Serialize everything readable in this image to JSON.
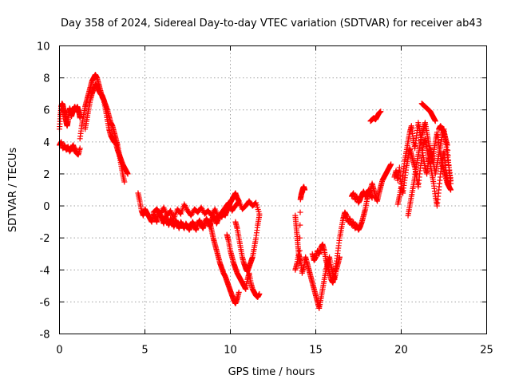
{
  "chart_data": {
    "type": "scatter",
    "title": "Day 358 of 2024, Sidereal Day-to-day VTEC variation (SDTVAR) for receiver ab43",
    "xlabel": "GPS time / hours",
    "ylabel": "SDTVAR / TECUs",
    "xlim": [
      0,
      25
    ],
    "ylim": [
      -8,
      10
    ],
    "xticks": [
      0,
      5,
      10,
      15,
      20,
      25
    ],
    "yticks": [
      -8,
      -6,
      -4,
      -2,
      0,
      2,
      4,
      6,
      8,
      10
    ],
    "grid": true,
    "marker": "+",
    "color": "#ff0000",
    "series": [
      {
        "name": "",
        "segments": [
          {
            "x": [
              0.0,
              0.05,
              0.1,
              0.15,
              0.2,
              0.25,
              0.3,
              0.35,
              0.4,
              0.45,
              0.5,
              0.55,
              0.6,
              0.65,
              0.7,
              0.75,
              0.8,
              0.85,
              0.9,
              0.95,
              1.0,
              1.05,
              1.1,
              1.15,
              1.2
            ],
            "y": [
              4.8,
              5.6,
              6.2,
              6.4,
              6.3,
              6.0,
              5.8,
              5.5,
              5.2,
              5.0,
              5.3,
              5.8,
              6.1,
              5.9,
              5.6,
              5.8,
              6.0,
              6.1,
              6.2,
              6.0,
              6.1,
              6.2,
              6.0,
              5.8,
              5.5
            ]
          },
          {
            "x": [
              0.0,
              0.1,
              0.2,
              0.3,
              0.4,
              0.5,
              0.6,
              0.7,
              0.8,
              0.9,
              1.0,
              1.1,
              1.2
            ],
            "y": [
              3.8,
              4.0,
              3.6,
              3.8,
              3.5,
              3.7,
              3.4,
              3.6,
              3.8,
              3.5,
              3.3,
              3.2,
              3.6
            ]
          },
          {
            "x": [
              1.2,
              1.3,
              1.4,
              1.5,
              1.6,
              1.7,
              1.8,
              1.9,
              2.0,
              2.1,
              2.2,
              2.3,
              2.4,
              2.5,
              2.6,
              2.7,
              2.8,
              2.9,
              3.0,
              3.1,
              3.2,
              3.3,
              3.4,
              3.5,
              3.6,
              3.7,
              3.8
            ],
            "y": [
              4.2,
              5.0,
              5.6,
              6.2,
              6.6,
              7.0,
              7.4,
              7.8,
              8.0,
              8.2,
              8.0,
              7.6,
              7.2,
              6.8,
              6.6,
              6.3,
              6.0,
              5.6,
              5.2,
              5.0,
              4.6,
              4.2,
              3.8,
              3.2,
              2.6,
              2.0,
              1.5
            ]
          },
          {
            "x": [
              1.5,
              1.6,
              1.7,
              1.8,
              1.9,
              2.0,
              2.1,
              2.2,
              2.3,
              2.4,
              2.5,
              2.6,
              2.7,
              2.8,
              2.9,
              3.0,
              3.1,
              3.2,
              3.3,
              3.4,
              3.5,
              3.6,
              3.7,
              3.8,
              3.9,
              4.0
            ],
            "y": [
              4.8,
              5.4,
              6.0,
              6.6,
              7.0,
              7.3,
              7.6,
              7.5,
              7.2,
              7.0,
              6.9,
              6.6,
              6.0,
              5.4,
              4.8,
              4.4,
              4.2,
              4.0,
              3.9,
              3.5,
              3.2,
              2.9,
              2.6,
              2.4,
              2.2,
              2.0
            ]
          },
          {
            "x": [
              4.6,
              4.7,
              4.8,
              4.9,
              5.0,
              5.1,
              5.2,
              5.3,
              5.4,
              5.5,
              5.6,
              5.7,
              5.8,
              5.9,
              6.0,
              6.1,
              6.2,
              6.3,
              6.4,
              6.5,
              6.6,
              6.7,
              6.8,
              6.9,
              7.0,
              7.1,
              7.2,
              7.3,
              7.4,
              7.5,
              7.6,
              7.7,
              7.8,
              7.9,
              8.0,
              8.1,
              8.2,
              8.3,
              8.4,
              8.5,
              8.6,
              8.7,
              8.8,
              8.9,
              9.0,
              9.1,
              9.2,
              9.3,
              9.4,
              9.5,
              9.6,
              9.7,
              9.8,
              9.9,
              10.0,
              10.1,
              10.2,
              10.3,
              10.4,
              10.5
            ],
            "y": [
              0.8,
              0.3,
              -0.3,
              -0.6,
              -0.2,
              -0.4,
              -0.6,
              -0.8,
              -1.0,
              -0.5,
              -0.7,
              -1.0,
              -0.4,
              -0.6,
              -0.8,
              -1.1,
              -0.6,
              -0.9,
              -1.2,
              -0.8,
              -1.0,
              -1.3,
              -0.9,
              -1.1,
              -1.4,
              -1.0,
              -1.2,
              -1.4,
              -1.1,
              -1.3,
              -1.5,
              -1.2,
              -1.0,
              -1.3,
              -1.5,
              -1.1,
              -0.9,
              -1.2,
              -1.4,
              -1.1,
              -0.8,
              -1.0,
              -1.3,
              -0.9,
              -0.6,
              -0.8,
              -1.1,
              -0.8,
              -0.5,
              -0.7,
              -0.4,
              -0.6,
              -0.3,
              -0.1,
              0.2,
              0.4,
              0.6,
              0.8,
              0.5,
              0.3
            ]
          },
          {
            "x": [
              5.5,
              5.7,
              5.9,
              6.1,
              6.3,
              6.5,
              6.7,
              6.9,
              7.1,
              7.3,
              7.5,
              7.7,
              7.9,
              8.1,
              8.3,
              8.5,
              8.7,
              8.9,
              9.1,
              9.3,
              9.5,
              9.7,
              9.9,
              10.1,
              10.3,
              10.5,
              10.7,
              10.9,
              11.1,
              11.3,
              11.5,
              11.7
            ],
            "y": [
              -0.4,
              -0.2,
              -0.5,
              -0.1,
              -0.6,
              -0.3,
              -0.8,
              -0.2,
              -0.5,
              0.1,
              -0.3,
              -0.6,
              -0.2,
              -0.4,
              -0.1,
              -0.5,
              -0.3,
              -0.6,
              -0.2,
              -0.7,
              -0.4,
              -0.1,
              0.2,
              -0.3,
              0.0,
              0.3,
              -0.2,
              0.0,
              0.3,
              0.0,
              0.2,
              -0.5
            ]
          },
          {
            "x": [
              8.8,
              8.9,
              9.0,
              9.1,
              9.2,
              9.3,
              9.4,
              9.5,
              9.6,
              9.7,
              9.8,
              9.9,
              10.0,
              10.1,
              10.2,
              10.3,
              10.4,
              10.5
            ],
            "y": [
              -1.0,
              -1.5,
              -2.0,
              -2.4,
              -2.8,
              -3.2,
              -3.6,
              -3.9,
              -4.2,
              -4.4,
              -4.7,
              -5.0,
              -5.3,
              -5.6,
              -5.9,
              -6.1,
              -5.8,
              -5.4
            ]
          },
          {
            "x": [
              9.8,
              9.9,
              10.0,
              10.1,
              10.2,
              10.3,
              10.4,
              10.5,
              10.6,
              10.7,
              10.8,
              10.9,
              11.0,
              11.1,
              11.2,
              11.3,
              11.4,
              11.5,
              11.6,
              11.7
            ],
            "y": [
              -1.8,
              -2.2,
              -2.8,
              -3.2,
              -3.6,
              -3.9,
              -4.2,
              -4.4,
              -4.6,
              -4.8,
              -5.0,
              -5.2,
              -4.6,
              -4.2,
              -4.8,
              -5.2,
              -5.4,
              -5.6,
              -5.7,
              -5.5
            ]
          },
          {
            "x": [
              10.3,
              10.4,
              10.5,
              10.6,
              10.7,
              10.8,
              10.9,
              11.0,
              11.1,
              11.2,
              11.3,
              11.4,
              11.5,
              11.6,
              11.7
            ],
            "y": [
              -1.0,
              -1.4,
              -2.0,
              -2.6,
              -3.2,
              -3.6,
              -3.9,
              -4.1,
              -3.8,
              -3.5,
              -3.2,
              -2.6,
              -2.0,
              -1.2,
              -0.6
            ]
          },
          {
            "x": [
              13.8,
              13.85,
              13.9,
              13.95,
              14.0,
              14.05,
              14.1,
              14.15,
              14.2,
              14.25,
              14.3,
              14.35
            ],
            "y": [
              -0.6,
              -1.2,
              -1.8,
              -2.4,
              -3.0,
              -3.6,
              0.4,
              0.7,
              0.9,
              1.1,
              1.2,
              1.0
            ]
          },
          {
            "x": [
              13.8,
              13.9,
              14.0,
              14.1,
              14.2,
              14.3,
              14.4,
              14.5,
              14.6,
              14.7,
              14.8,
              14.9,
              15.0,
              15.1,
              15.2,
              15.3,
              15.4,
              15.5,
              15.6,
              15.7,
              15.8,
              15.9,
              16.0,
              16.1,
              16.2,
              16.3,
              16.4
            ],
            "y": [
              -4.0,
              -3.6,
              -3.0,
              -3.4,
              -4.2,
              -3.8,
              -3.2,
              -3.6,
              -4.0,
              -4.4,
              -4.8,
              -5.2,
              -5.6,
              -6.0,
              -6.4,
              -5.8,
              -5.2,
              -4.6,
              -4.0,
              -3.6,
              -3.2,
              -3.8,
              -4.2,
              -4.6,
              -4.0,
              -3.6,
              -3.2
            ]
          },
          {
            "x": [
              14.8,
              14.9,
              15.0,
              15.1,
              15.2,
              15.3,
              15.4,
              15.5,
              15.6,
              15.7,
              15.8,
              15.9,
              16.0,
              16.1,
              16.2,
              16.3,
              16.4,
              16.5,
              16.6,
              16.7,
              16.8,
              16.9,
              17.0,
              17.1,
              17.2,
              17.3,
              17.4,
              17.5,
              17.6,
              17.7,
              17.8,
              17.9,
              18.0,
              18.1,
              18.2,
              18.3,
              18.4,
              18.5,
              18.6,
              18.7,
              18.8,
              18.9,
              19.0,
              19.1,
              19.2,
              19.3,
              19.4
            ],
            "y": [
              -3.0,
              -3.4,
              -3.2,
              -2.8,
              -3.0,
              -2.6,
              -2.4,
              -2.8,
              -3.4,
              -3.8,
              -4.2,
              -4.6,
              -4.8,
              -4.4,
              -3.6,
              -2.8,
              -2.0,
              -1.4,
              -0.8,
              -0.4,
              -0.6,
              -1.0,
              -0.8,
              -1.2,
              -1.0,
              -1.4,
              -1.2,
              -1.5,
              -1.3,
              -1.0,
              -0.6,
              -0.2,
              0.4,
              0.8,
              1.0,
              1.4,
              1.0,
              0.6,
              0.3,
              0.8,
              1.2,
              1.6,
              1.8,
              2.0,
              2.2,
              2.4,
              2.6
            ]
          },
          {
            "x": [
              17.1,
              17.2,
              17.3,
              17.4,
              17.5,
              17.6,
              17.7,
              17.8,
              17.9,
              18.0,
              18.1,
              18.2,
              18.3
            ],
            "y": [
              0.6,
              0.8,
              0.4,
              0.6,
              0.2,
              0.4,
              0.7,
              0.9,
              0.6,
              0.8,
              1.0,
              0.7,
              0.5
            ]
          },
          {
            "x": [
              18.2,
              18.3,
              18.4,
              18.5,
              18.6,
              18.7,
              18.8
            ],
            "y": [
              5.3,
              5.4,
              5.5,
              5.4,
              5.6,
              5.8,
              5.9
            ]
          },
          {
            "x": [
              19.6,
              19.7,
              19.8,
              19.9,
              20.0,
              20.1,
              20.2,
              20.3,
              20.4,
              20.5,
              20.6,
              20.7,
              20.8,
              20.9,
              21.0,
              21.1,
              21.2,
              21.3,
              21.4,
              21.5,
              21.6,
              21.7,
              21.8,
              21.9,
              22.0,
              22.1,
              22.2,
              22.3,
              22.4,
              22.5,
              22.6,
              22.7,
              22.8,
              22.9
            ],
            "y": [
              1.8,
              2.2,
              1.6,
              2.4,
              1.2,
              2.0,
              2.8,
              3.4,
              4.0,
              4.6,
              5.0,
              4.2,
              3.6,
              4.4,
              5.2,
              4.6,
              3.8,
              3.0,
              2.4,
              2.0,
              2.8,
              3.6,
              3.2,
              2.6,
              2.0,
              2.6,
              3.2,
              3.8,
              4.4,
              4.8,
              4.0,
              3.2,
              2.4,
              1.6
            ]
          },
          {
            "x": [
              19.8,
              19.9,
              20.0,
              20.1,
              20.2,
              20.3,
              20.4,
              20.5,
              20.6,
              20.7,
              20.8,
              20.9,
              21.0,
              21.1,
              21.2,
              21.3,
              21.4,
              21.5,
              21.6,
              21.7,
              21.8,
              21.9,
              22.0,
              22.1,
              22.2,
              22.3,
              22.4,
              22.5,
              22.6,
              22.7,
              22.8
            ],
            "y": [
              0.1,
              0.6,
              1.2,
              0.8,
              1.6,
              2.4,
              3.0,
              3.6,
              3.2,
              2.8,
              2.4,
              1.8,
              1.2,
              2.2,
              3.0,
              3.8,
              4.2,
              3.6,
              3.0,
              2.6,
              2.0,
              1.4,
              0.6,
              0.0,
              1.0,
              2.0,
              2.8,
              3.4,
              2.4,
              1.6,
              1.2
            ]
          },
          {
            "x": [
              20.4,
              20.5,
              20.6,
              20.7,
              20.8,
              20.9,
              21.0,
              21.1,
              21.2,
              21.3,
              21.4,
              21.5,
              21.6,
              21.7,
              21.8,
              21.9,
              22.0,
              22.1,
              22.2,
              22.3,
              22.4,
              22.5,
              22.6,
              22.7,
              22.8,
              22.9
            ],
            "y": [
              -0.6,
              0.0,
              0.6,
              1.2,
              1.8,
              2.6,
              3.2,
              3.8,
              4.4,
              4.8,
              5.2,
              4.6,
              4.0,
              3.4,
              2.8,
              3.4,
              4.0,
              4.6,
              3.8,
              3.2,
              2.6,
              2.2,
              1.8,
              1.4,
              1.2,
              1.0
            ]
          },
          {
            "x": [
              21.2,
              21.3,
              21.4,
              21.5,
              21.6,
              21.7,
              21.8,
              21.9,
              22.0
            ],
            "y": [
              6.4,
              6.3,
              6.2,
              6.1,
              6.0,
              5.9,
              5.7,
              5.5,
              5.3
            ]
          },
          {
            "x": [
              22.2,
              22.3,
              22.4,
              22.5,
              22.6,
              22.7,
              22.8,
              22.9
            ],
            "y": [
              4.8,
              5.0,
              4.8,
              4.6,
              4.2,
              3.8,
              2.2,
              1.4
            ]
          }
        ]
      }
    ]
  }
}
